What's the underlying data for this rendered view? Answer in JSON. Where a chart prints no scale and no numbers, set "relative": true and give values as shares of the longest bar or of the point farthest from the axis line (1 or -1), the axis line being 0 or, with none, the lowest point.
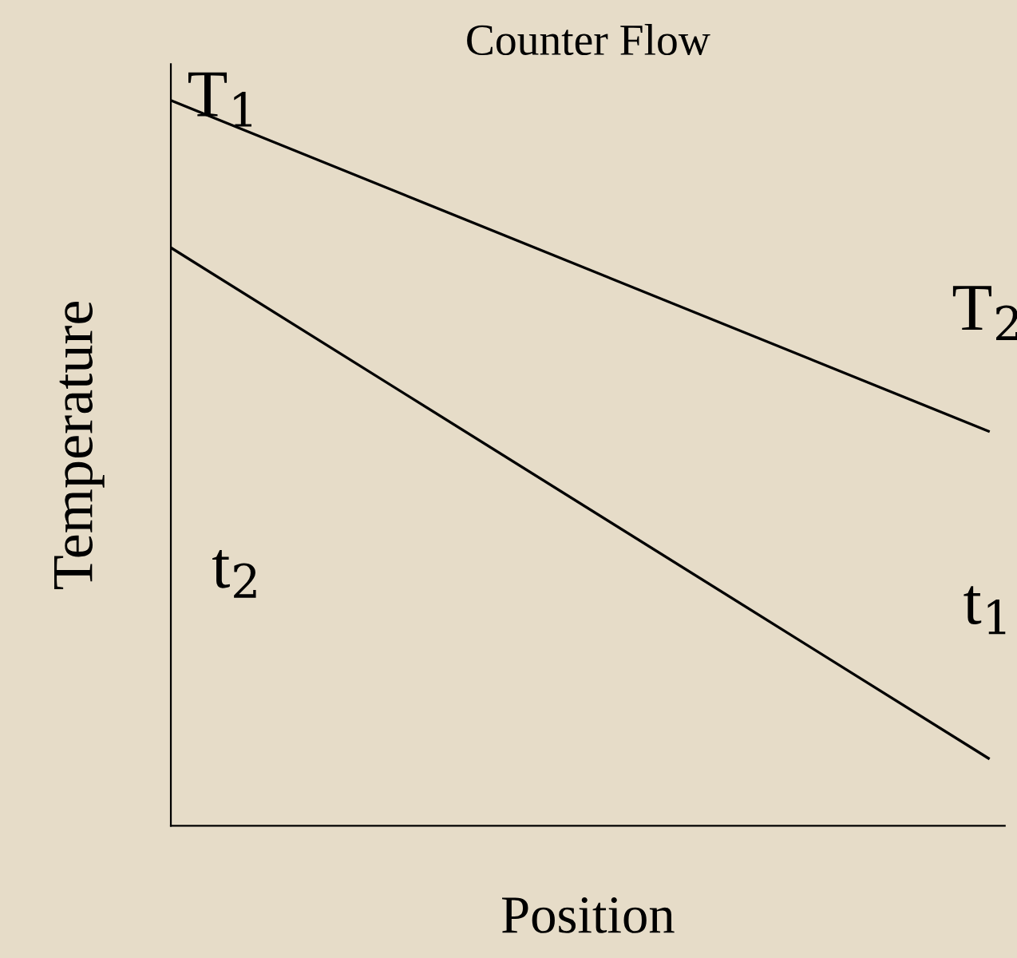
{
  "chart_data": {
    "type": "line",
    "title": "Counter Flow",
    "xlabel": "Position",
    "ylabel": "Temperature",
    "relative": true,
    "categories": [
      null,
      null
    ],
    "series": [
      {
        "color": "#000000",
        "values": [
          1,
          0.544
        ]
      },
      {
        "color": "#000000",
        "values": [
          0.797,
          0.093
        ]
      }
    ],
    "annotations": [
      "T$_{1}$",
      "T$_{2}$",
      "t$_{2}$",
      "t$_{1}$"
    ],
    "grid": false,
    "legend": false,
    "marker": "none",
    "line_style": "solid"
  }
}
